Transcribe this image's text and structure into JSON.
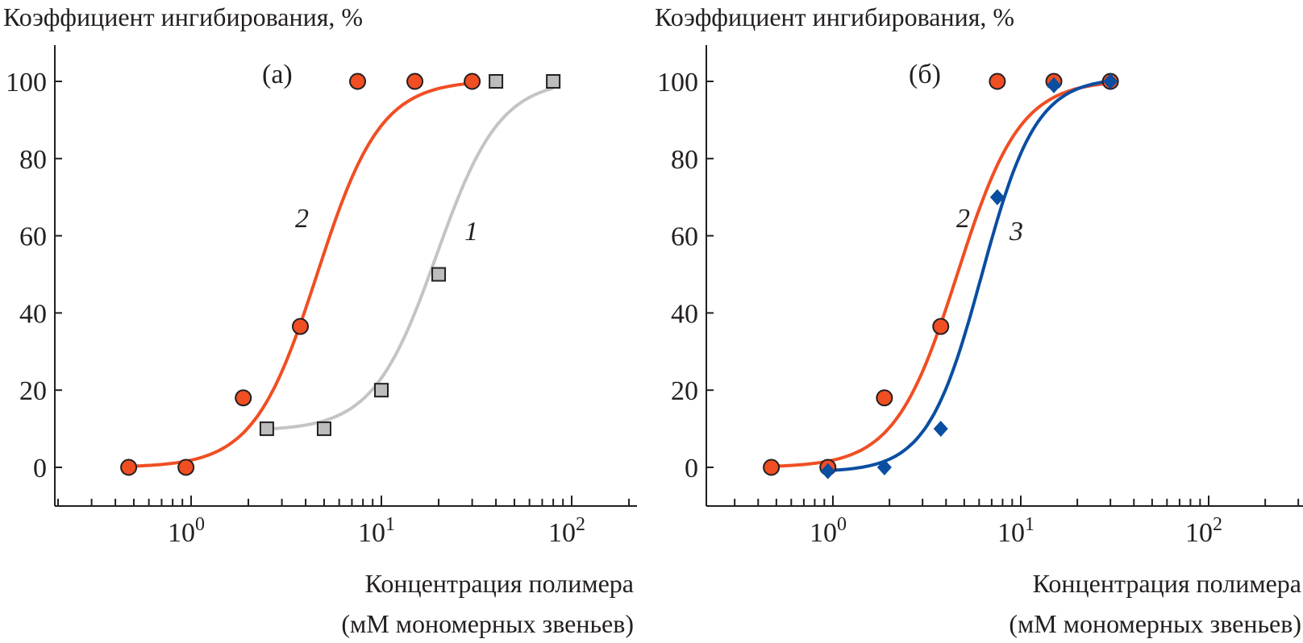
{
  "chart_data": [
    {
      "type": "scatter",
      "panel_label": "(а)",
      "ylabel": "Коэффициент ингибирования, %",
      "xlabel_line1": "Концентрация полимера",
      "xlabel_line2": "(мМ мономерных звеньев)",
      "xscale": "log",
      "xlim": [
        0.19,
        230
      ],
      "ylim": [
        -10,
        110
      ],
      "yticks": [
        0,
        20,
        40,
        60,
        80,
        100
      ],
      "xticks": [
        {
          "base": "10",
          "exp": "0",
          "value": 1
        },
        {
          "base": "10",
          "exp": "1",
          "value": 10
        },
        {
          "base": "10",
          "exp": "2",
          "value": 100
        }
      ],
      "grid": false,
      "series": [
        {
          "name": "2",
          "marker": "circle",
          "color": "#f04e23",
          "x": [
            0.47,
            0.94,
            1.88,
            3.75,
            7.5,
            15,
            30
          ],
          "y": [
            0,
            0,
            18,
            36.5,
            100,
            100,
            100
          ],
          "fit": {
            "bottom": 0,
            "top": 100.3,
            "ec50": 4.6,
            "hill": 2.6,
            "xrange": [
              0.47,
              30
            ]
          }
        },
        {
          "name": "1",
          "marker": "square",
          "color": "#c4c4c4",
          "fill": "#bdbdbd",
          "x": [
            2.5,
            5,
            10,
            20,
            40,
            80
          ],
          "y": [
            10,
            10,
            20,
            50,
            100,
            100
          ],
          "fit": {
            "bottom": 9.5,
            "top": 100.5,
            "ec50": 19.5,
            "hill": 2.6,
            "xrange": [
              2.5,
              80
            ]
          }
        }
      ]
    },
    {
      "type": "scatter",
      "panel_label": "(б)",
      "ylabel": "Коэффициент ингибирования, %",
      "xlabel_line1": "Концентрация полимера",
      "xlabel_line2": "(мМ мономерных звеньев)",
      "xscale": "log",
      "xlim": [
        0.21,
        240
      ],
      "ylim": [
        -10,
        110
      ],
      "yticks": [
        0,
        20,
        40,
        60,
        80,
        100
      ],
      "xticks": [
        {
          "base": "10",
          "exp": "0",
          "value": 1
        },
        {
          "base": "10",
          "exp": "1",
          "value": 10
        },
        {
          "base": "10",
          "exp": "2",
          "value": 100
        }
      ],
      "grid": false,
      "series": [
        {
          "name": "2",
          "marker": "circle",
          "color": "#f04e23",
          "x": [
            0.47,
            0.94,
            1.88,
            3.75,
            7.5,
            15,
            30
          ],
          "y": [
            0,
            0,
            18,
            36.5,
            100,
            100,
            100
          ],
          "fit": {
            "bottom": 0,
            "top": 100.3,
            "ec50": 4.6,
            "hill": 2.6,
            "xrange": [
              0.47,
              30
            ]
          }
        },
        {
          "name": "3",
          "marker": "diamond",
          "color": "#0a4ea2",
          "x": [
            0.94,
            1.88,
            3.75,
            7.5,
            15,
            30
          ],
          "y": [
            -1,
            0,
            10,
            70,
            99,
            100
          ],
          "fit": {
            "bottom": -1.2,
            "top": 101,
            "ec50": 6.2,
            "hill": 3.0,
            "xrange": [
              0.94,
              30
            ]
          }
        }
      ]
    }
  ]
}
